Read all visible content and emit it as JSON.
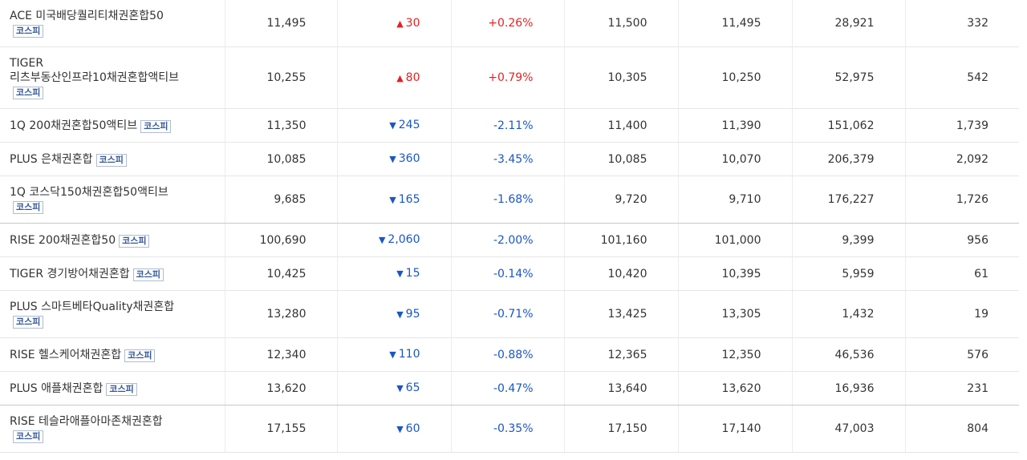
{
  "table": {
    "rows": [
      [
        "ACE 미국배당퀄리티채권혼합50",
        "코스피",
        "11,495",
        "▲",
        "30",
        "+0.26%",
        "11,500",
        "11,495",
        "28,921",
        "332"
      ],
      [
        "TIGER 리츠부동산인프라10채권혼합액티브",
        "코스피",
        "10,255",
        "▲",
        "80",
        "+0.79%",
        "10,305",
        "10,250",
        "52,975",
        "542"
      ],
      [
        "1Q 200채권혼합50액티브",
        "코스피",
        "11,350",
        "▼",
        "245",
        "-2.11%",
        "11,400",
        "11,390",
        "151,062",
        "1,739"
      ],
      [
        "PLUS 은채권혼합",
        "코스피",
        "10,085",
        "▼",
        "360",
        "-3.45%",
        "10,085",
        "10,070",
        "206,379",
        "2,092"
      ],
      [
        "1Q 코스닥150채권혼합50액티브",
        "코스피",
        "9,685",
        "▼",
        "165",
        "-1.68%",
        "9,720",
        "9,710",
        "176,227",
        "1,726"
      ],
      [
        "RISE 200채권혼합50",
        "코스피",
        "100,690",
        "▼",
        "2,060",
        "-2.00%",
        "101,160",
        "101,000",
        "9,399",
        "956"
      ],
      [
        "TIGER 경기방어채권혼합",
        "코스피",
        "10,425",
        "▼",
        "15",
        "-0.14%",
        "10,420",
        "10,395",
        "5,959",
        "61"
      ],
      [
        "PLUS 스마트베타Quality채권혼합",
        "코스피",
        "13,280",
        "▼",
        "95",
        "-0.71%",
        "13,425",
        "13,305",
        "1,432",
        "19"
      ],
      [
        "RISE 헬스케어채권혼합",
        "코스피",
        "12,340",
        "▼",
        "110",
        "-0.88%",
        "12,365",
        "12,350",
        "46,536",
        "576"
      ],
      [
        "PLUS 애플채권혼합",
        "코스피",
        "13,620",
        "▼",
        "65",
        "-0.47%",
        "13,640",
        "13,620",
        "16,936",
        "231"
      ],
      [
        "RISE 테슬라애플아마존채권혼합",
        "코스피",
        "17,155",
        "▼",
        "60",
        "-0.35%",
        "17,150",
        "17,140",
        "47,003",
        "804"
      ]
    ]
  }
}
